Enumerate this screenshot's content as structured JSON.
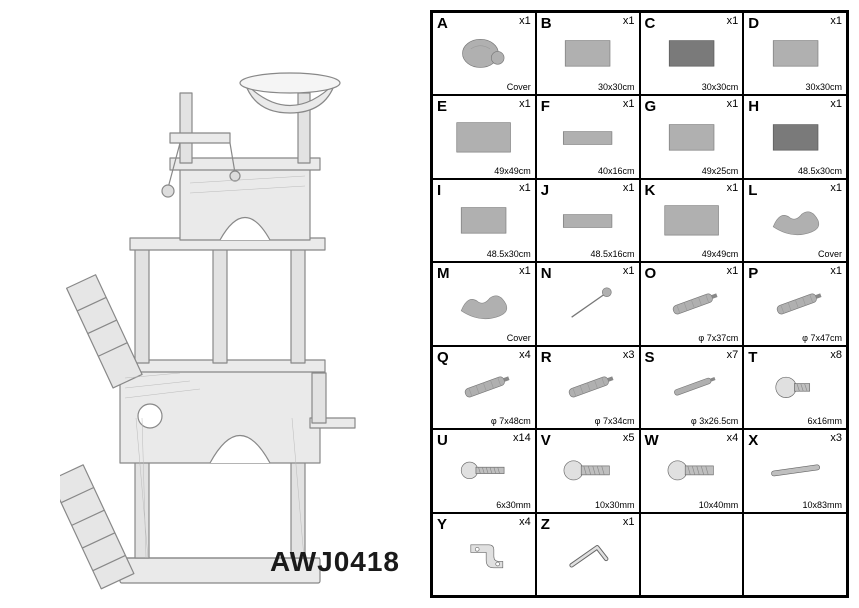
{
  "model_code": "AWJ0418",
  "grid": {
    "cols": 4,
    "rows": 7
  },
  "colors": {
    "page_bg": "#ffffff",
    "border": "#000000",
    "text": "#000000",
    "sketch_stroke": "#888888",
    "sketch_fill": "#e8e8e8",
    "panel_gray": "#b0b0b0",
    "panel_dark": "#7a7a7a",
    "metal": "#bfbfbf",
    "metal_highlight": "#e0e0e0"
  },
  "sketch": {
    "type": "pencil_sketch",
    "subject": "cat_tree_tower",
    "strokewidth": 1.2
  },
  "parts": [
    {
      "letter": "A",
      "qty": "x1",
      "spec": "Cover",
      "shape": "round_cover"
    },
    {
      "letter": "B",
      "qty": "x1",
      "spec": "30x30cm",
      "shape": "panel"
    },
    {
      "letter": "C",
      "qty": "x1",
      "spec": "30x30cm",
      "shape": "panel_dark"
    },
    {
      "letter": "D",
      "qty": "x1",
      "spec": "30x30cm",
      "shape": "panel"
    },
    {
      "letter": "E",
      "qty": "x1",
      "spec": "49x49cm",
      "shape": "panel_wide"
    },
    {
      "letter": "F",
      "qty": "x1",
      "spec": "40x16cm",
      "shape": "panel_narrow"
    },
    {
      "letter": "G",
      "qty": "x1",
      "spec": "49x25cm",
      "shape": "panel"
    },
    {
      "letter": "H",
      "qty": "x1",
      "spec": "48.5x30cm",
      "shape": "panel_dark"
    },
    {
      "letter": "I",
      "qty": "x1",
      "spec": "48.5x30cm",
      "shape": "panel"
    },
    {
      "letter": "J",
      "qty": "x1",
      "spec": "48.5x16cm",
      "shape": "panel_narrow"
    },
    {
      "letter": "K",
      "qty": "x1",
      "spec": "49x49cm",
      "shape": "panel_wide"
    },
    {
      "letter": "L",
      "qty": "x1",
      "spec": "Cover",
      "shape": "cloth"
    },
    {
      "letter": "M",
      "qty": "x1",
      "spec": "Cover",
      "shape": "cloth"
    },
    {
      "letter": "N",
      "qty": "x1",
      "spec": "",
      "shape": "ball_stick"
    },
    {
      "letter": "O",
      "qty": "x1",
      "spec": "φ 7x37cm",
      "shape": "post"
    },
    {
      "letter": "P",
      "qty": "x1",
      "spec": "φ 7x47cm",
      "shape": "post"
    },
    {
      "letter": "Q",
      "qty": "x4",
      "spec": "φ 7x48cm",
      "shape": "post"
    },
    {
      "letter": "R",
      "qty": "x3",
      "spec": "φ 7x34cm",
      "shape": "post"
    },
    {
      "letter": "S",
      "qty": "x7",
      "spec": "φ 3x26.5cm",
      "shape": "post_thin"
    },
    {
      "letter": "T",
      "qty": "x8",
      "spec": "6x16mm",
      "shape": "bolt_short"
    },
    {
      "letter": "U",
      "qty": "x14",
      "spec": "6x30mm",
      "shape": "bolt"
    },
    {
      "letter": "V",
      "qty": "x5",
      "spec": "10x30mm",
      "shape": "bolt_wide"
    },
    {
      "letter": "W",
      "qty": "x4",
      "spec": "10x40mm",
      "shape": "bolt_wide"
    },
    {
      "letter": "X",
      "qty": "x3",
      "spec": "10x83mm",
      "shape": "rod"
    },
    {
      "letter": "Y",
      "qty": "x4",
      "spec": "",
      "shape": "bracket"
    },
    {
      "letter": "Z",
      "qty": "x1",
      "spec": "",
      "shape": "allen_key"
    },
    {
      "letter": "",
      "qty": "",
      "spec": "",
      "shape": "empty"
    },
    {
      "letter": "",
      "qty": "",
      "spec": "",
      "shape": "empty"
    }
  ]
}
